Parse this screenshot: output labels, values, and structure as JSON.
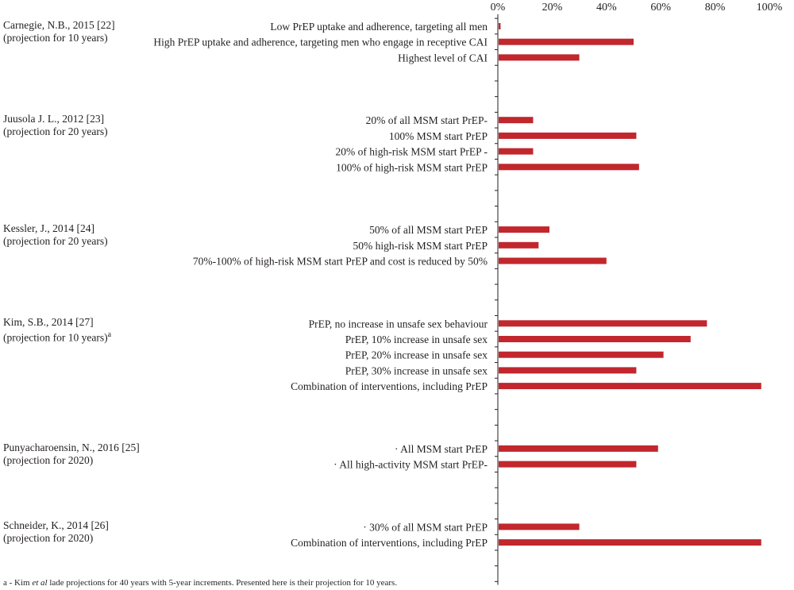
{
  "chart_data": {
    "type": "bar",
    "orientation": "horizontal",
    "xlim": [
      0,
      100
    ],
    "x_ticks": [
      "0%",
      "20%",
      "40%",
      "60%",
      "80%",
      "100%"
    ],
    "bar_color": "#c1272d",
    "groups": [
      {
        "title": "Carnegie, N.B., 2015 [22]",
        "subtitle": "(projection for 10 years)",
        "superscript": "",
        "bars": [
          {
            "label": "Low PrEP uptake and adherence, targeting all men",
            "value": 1
          },
          {
            "label": "High PrEP uptake and adherence, targeting men who engage in receptive CAI",
            "value": 50
          },
          {
            "label": "Highest level of CAI",
            "value": 30
          }
        ]
      },
      {
        "title": "Juusola J. L., 2012 [23]",
        "subtitle": "(projection for 20 years)",
        "superscript": "",
        "bars": [
          {
            "label": "20% of all MSM start PrEP-",
            "value": 13
          },
          {
            "label": "100% MSM start PrEP",
            "value": 51
          },
          {
            "label": "20% of high-risk MSM start PrEP -",
            "value": 13
          },
          {
            "label": "100% of high-risk MSM start PrEP",
            "value": 52
          }
        ]
      },
      {
        "title": "Kessler, J., 2014 [24]",
        "subtitle": "(projection for 20 years)",
        "superscript": "",
        "bars": [
          {
            "label": "50% of all MSM start PrEP",
            "value": 19
          },
          {
            "label": "50% high-risk MSM start PrEP",
            "value": 15
          },
          {
            "label": "70%-100% of high-risk MSM start PrEP and cost is reduced by 50%",
            "value": 40
          }
        ]
      },
      {
        "title": "Kim, S.B., 2014 [27]",
        "subtitle": "(projection for 10 years)",
        "superscript": "a",
        "bars": [
          {
            "label": "PrEP, no increase in unsafe sex behaviour",
            "value": 77
          },
          {
            "label": "PrEP, 10% increase in unsafe sex",
            "value": 71
          },
          {
            "label": "PrEP, 20% increase in unsafe sex",
            "value": 61
          },
          {
            "label": "PrEP, 30% increase in unsafe sex",
            "value": 51
          },
          {
            "label": "Combination of interventions, including PrEP",
            "value": 97
          }
        ]
      },
      {
        "title": "Punyacharoensin, N., 2016 [25]",
        "subtitle": "(projection for 2020)",
        "superscript": "",
        "bars": [
          {
            "label": "· All MSM start PrEP",
            "value": 59
          },
          {
            "label": "· All high-activity MSM start PrEP-",
            "value": 51
          }
        ]
      },
      {
        "title": "Schneider, K., 2014 [26]",
        "subtitle": "(projection for 2020)",
        "superscript": "",
        "bars": [
          {
            "label": "· 30% of all MSM start PrEP",
            "value": 30
          },
          {
            "label": "Combination of interventions, including PrEP",
            "value": 97
          }
        ]
      }
    ]
  },
  "footnote": {
    "prefix": "a - Kim ",
    "italic": "et al",
    "suffix": " lade projections for 40 years with 5-year increments. Presented here is their projection for 10 years."
  }
}
